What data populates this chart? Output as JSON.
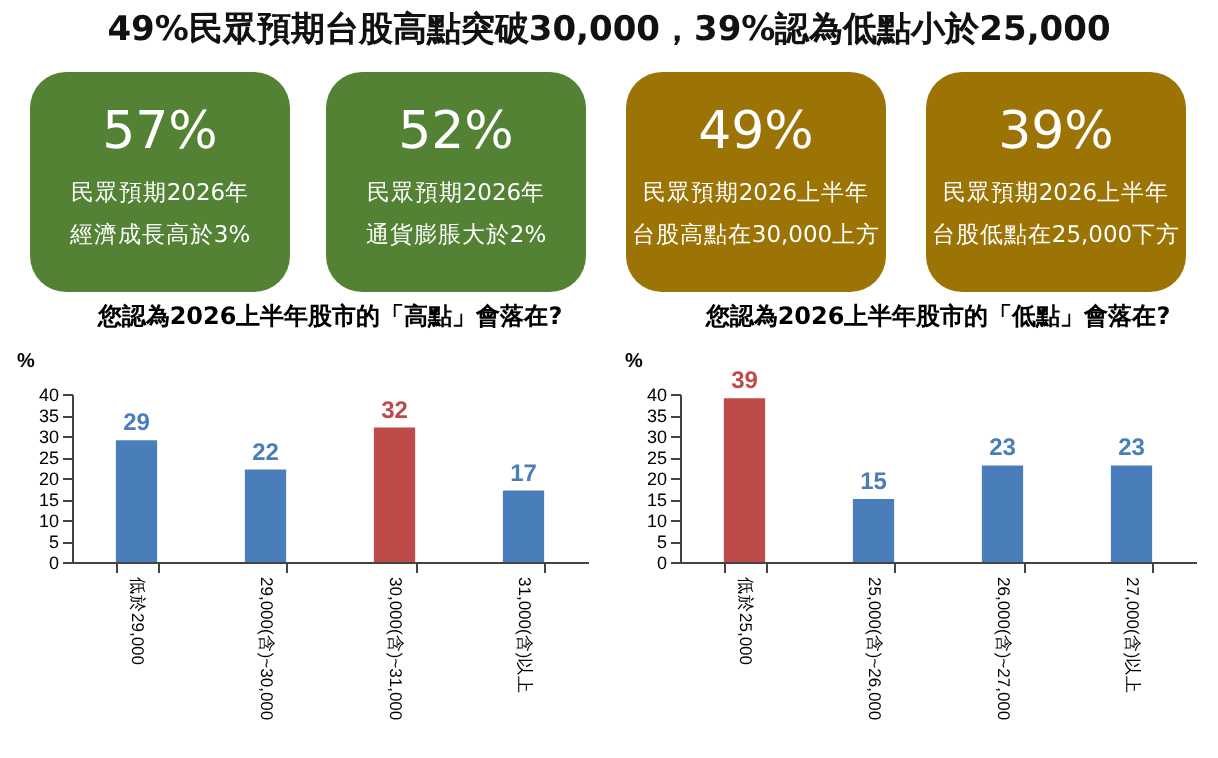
{
  "chart_data": [
    {
      "type": "other",
      "title": "49%民眾預期台股高點突破30,000，39%認為低點小於25,000",
      "annotations": [
        "57%",
        "民眾預期2026年",
        "經濟成長高於3%",
        "52%",
        "民眾預期2026年",
        "通貨膨脹大於2%",
        "49%",
        "民眾預期2026上半年",
        "台股高點在30,000上方",
        "39%",
        "民眾預期2026上半年",
        "台股低點在25,000下方"
      ]
    },
    {
      "type": "bar",
      "title": "您認為2026上半年股市的「高點」會落在?",
      "ylabel": "%",
      "categories": [
        "低於29,000",
        "29,000(含)~30,000",
        "30,000(含)~31,000",
        "31,000(含)以上"
      ],
      "values": [
        29,
        22,
        32,
        17
      ],
      "colors": [
        "#4a7ebb",
        "#4a7ebb",
        "#be4b48",
        "#4a7ebb"
      ],
      "ylim": [
        0,
        40
      ],
      "yticks": [
        0,
        5,
        10,
        15,
        20,
        25,
        30,
        35,
        40
      ],
      "data_labels": true,
      "grid": false
    },
    {
      "type": "bar",
      "title": "您認為2026上半年股市的「低點」會落在?",
      "ylabel": "%",
      "categories": [
        "低於25,000",
        "25,000(含)~26,000",
        "26,000(含)~27,000",
        "27,000(含)以上"
      ],
      "values": [
        39,
        15,
        23,
        23
      ],
      "colors": [
        "#be4b48",
        "#4a7ebb",
        "#4a7ebb",
        "#4a7ebb"
      ],
      "ylim": [
        0,
        40
      ],
      "yticks": [
        0,
        5,
        10,
        15,
        20,
        25,
        30,
        35,
        40
      ],
      "data_labels": true,
      "grid": false
    }
  ]
}
